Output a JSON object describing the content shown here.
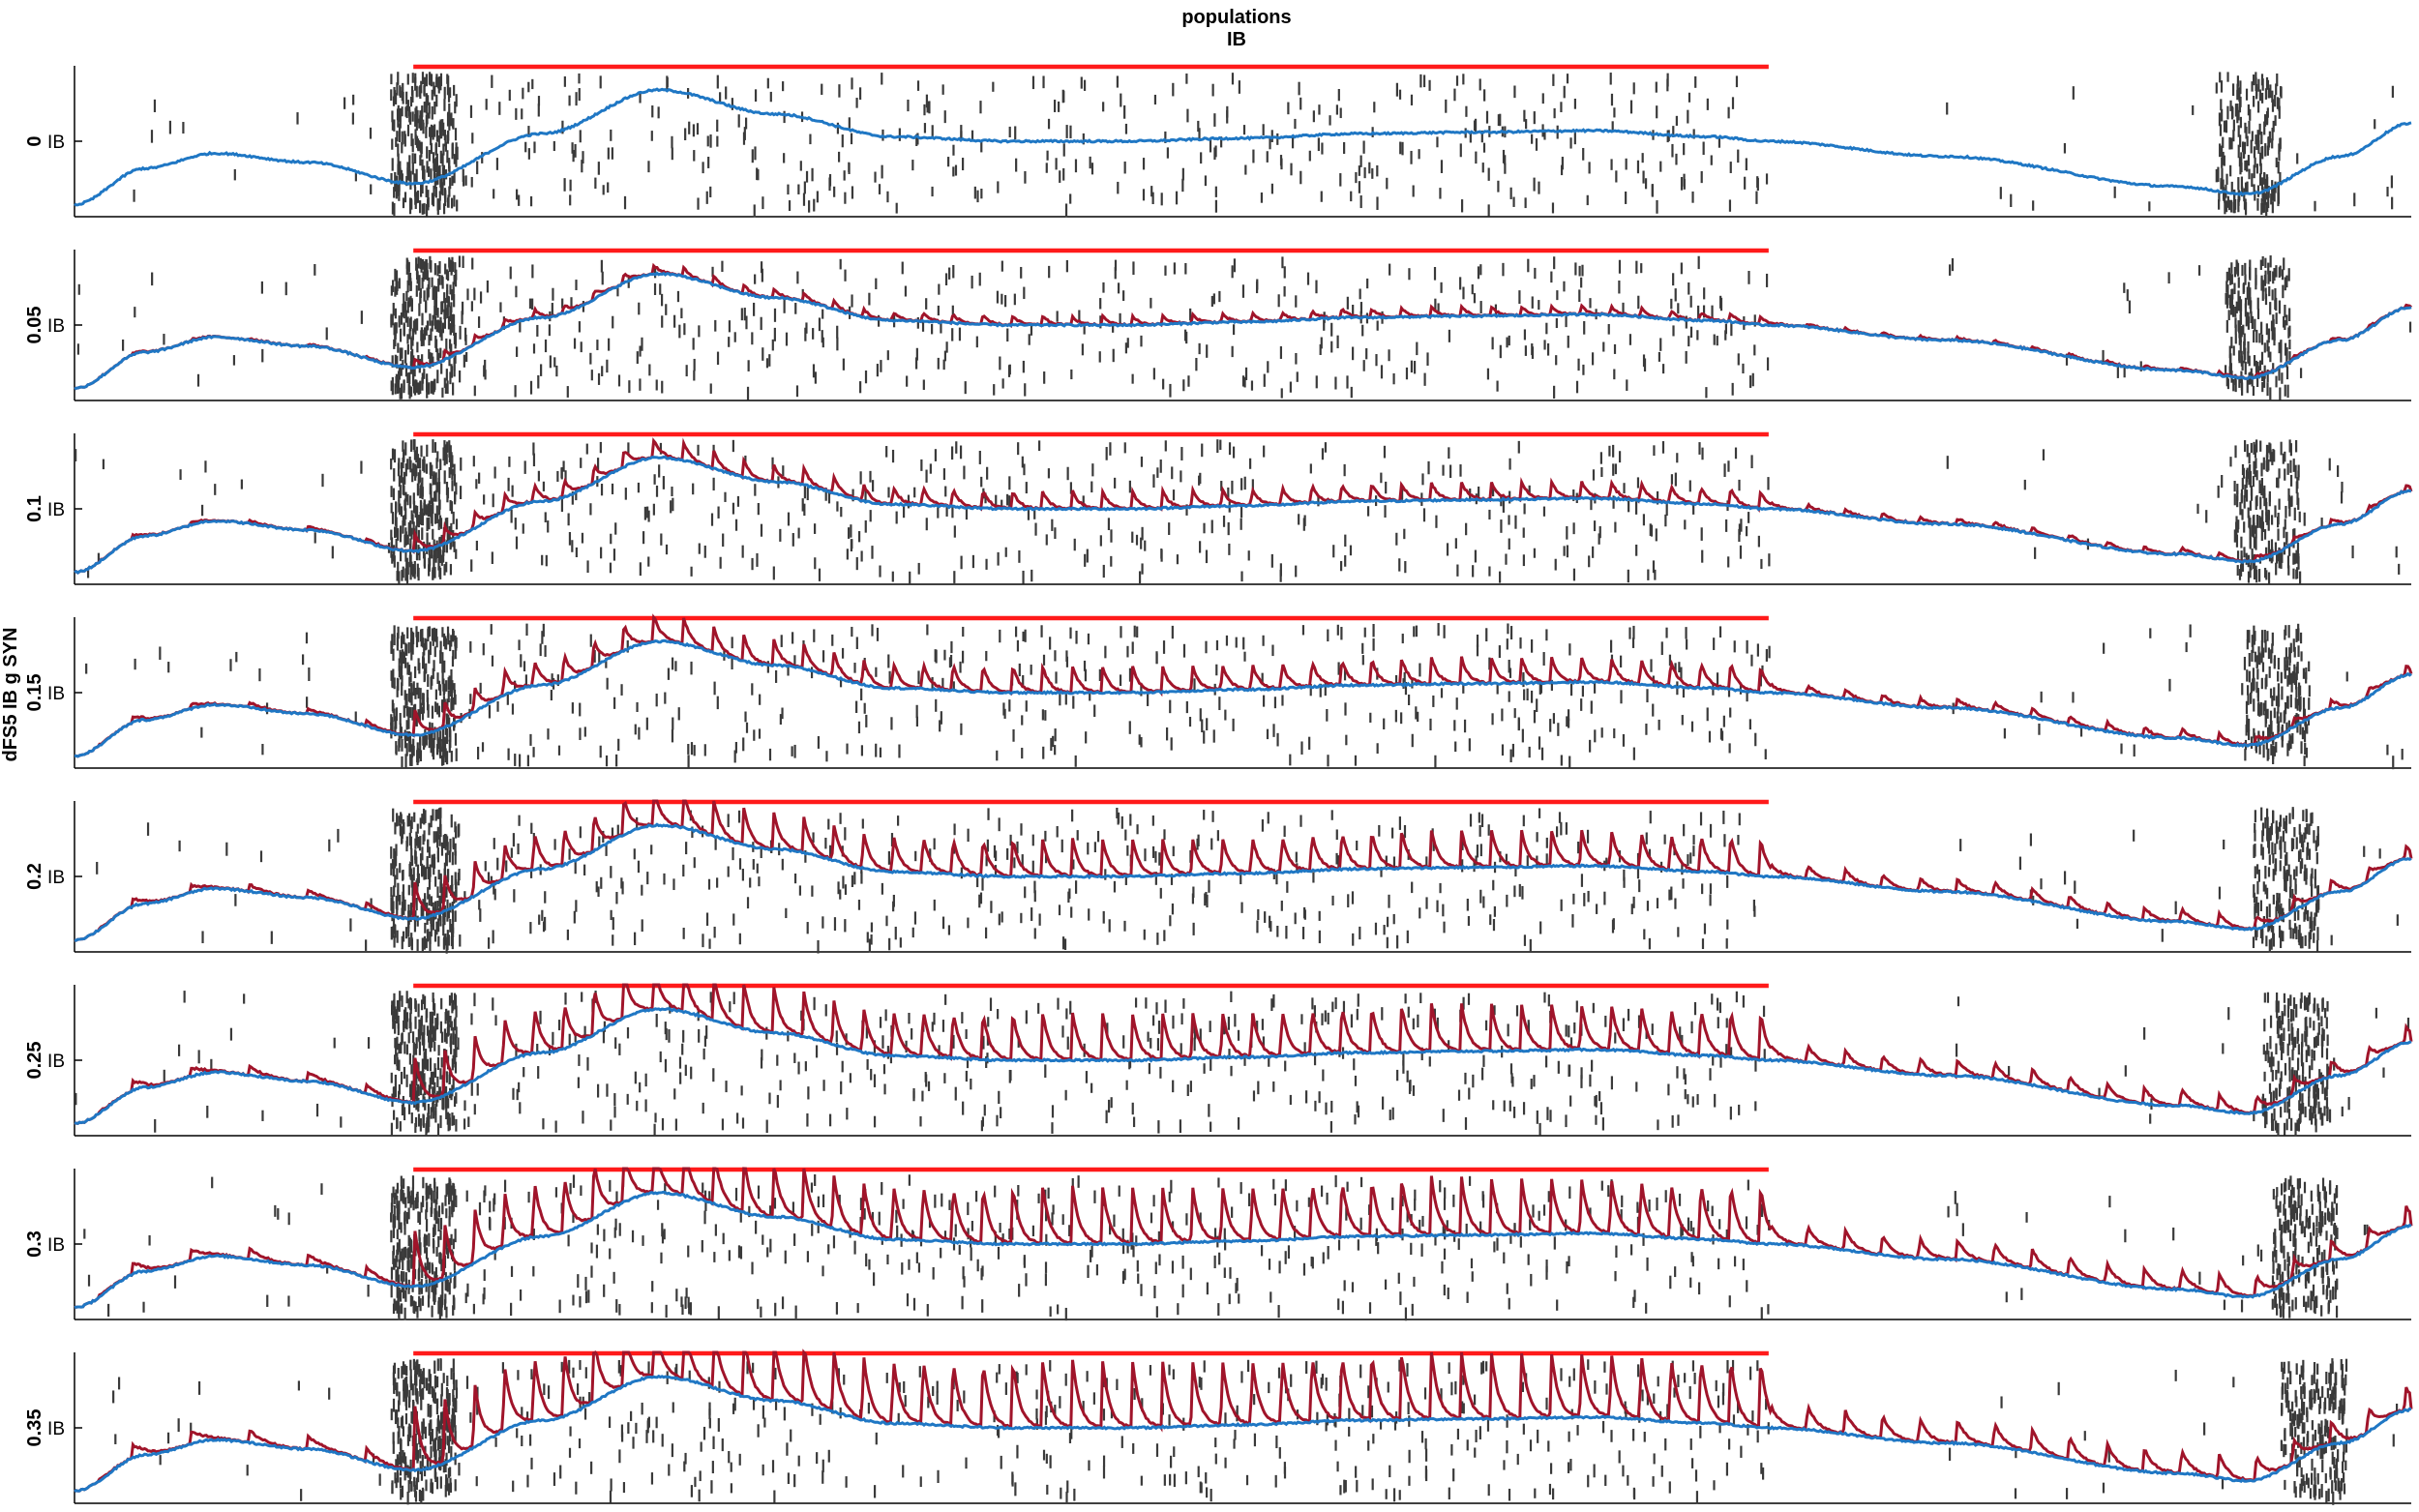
{
  "figure": {
    "title": "populations",
    "subtitle": "IB",
    "ylabel": "dFS5 IB g SYN"
  },
  "colors": {
    "raster": "#3a3a3a",
    "stimulus": "#ff1a1a",
    "trace_blue": "#1f77c4",
    "trace_red": "#a0142a",
    "axis": "#000000"
  },
  "chart_data": {
    "type": "line",
    "xlim": [
      0,
      1
    ],
    "ylim": [
      0,
      1
    ],
    "panel_rows": [
      "0",
      "0.05",
      "0.1",
      "0.15",
      "0.2",
      "0.25",
      "0.3",
      "0.35"
    ],
    "ytick_label": "IB",
    "grid": false,
    "stimulus": {
      "start": 0.145,
      "end": 0.725
    },
    "burst_times": [
      0.149,
      0.93
    ],
    "pulse_period": 0.0128,
    "blue_trace": {
      "x": [
        0,
        0.03,
        0.06,
        0.1,
        0.145,
        0.2,
        0.25,
        0.3,
        0.35,
        0.4,
        0.45,
        0.5,
        0.55,
        0.6,
        0.65,
        0.7,
        0.725,
        0.8,
        0.9,
        0.93,
        0.97,
        1.0
      ],
      "y": [
        0.08,
        0.32,
        0.42,
        0.36,
        0.22,
        0.55,
        0.84,
        0.68,
        0.53,
        0.5,
        0.5,
        0.52,
        0.55,
        0.56,
        0.57,
        0.53,
        0.5,
        0.4,
        0.2,
        0.15,
        0.4,
        0.62
      ]
    },
    "series": [
      {
        "row": "0",
        "pulse_amplitude": 0
      },
      {
        "row": "0.05",
        "pulse_amplitude": 0.07
      },
      {
        "row": "0.1",
        "pulse_amplitude": 0.14
      },
      {
        "row": "0.15",
        "pulse_amplitude": 0.21
      },
      {
        "row": "0.2",
        "pulse_amplitude": 0.3
      },
      {
        "row": "0.25",
        "pulse_amplitude": 0.38
      },
      {
        "row": "0.3",
        "pulse_amplitude": 0.46
      },
      {
        "row": "0.35",
        "pulse_amplitude": 0.54
      }
    ]
  }
}
